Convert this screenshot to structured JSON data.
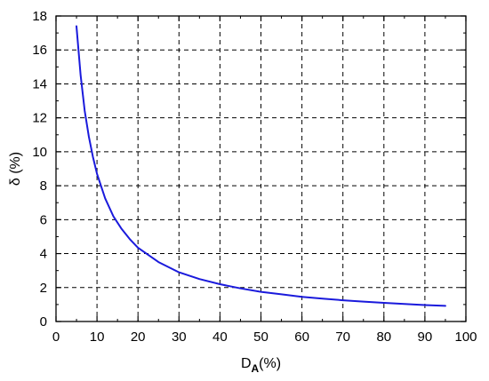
{
  "chart_data": {
    "type": "line",
    "title": "",
    "xlabel": {
      "main": "D",
      "sub": "A",
      "suffix": "(%)"
    },
    "ylabel": "δ (%)",
    "xlim": [
      0,
      100
    ],
    "ylim": [
      0,
      18
    ],
    "xticks": [
      0,
      10,
      20,
      30,
      40,
      50,
      60,
      70,
      80,
      90,
      100
    ],
    "yticks": [
      0,
      2,
      4,
      6,
      8,
      10,
      12,
      14,
      16,
      18
    ],
    "grid": true,
    "legend": "none",
    "series": [
      {
        "color": "#1a1adc",
        "x": [
          5,
          6,
          7,
          8,
          9,
          10,
          12,
          14,
          16,
          18,
          20,
          25,
          30,
          35,
          40,
          45,
          50,
          55,
          60,
          65,
          70,
          75,
          80,
          85,
          90,
          95
        ],
        "y": [
          17.4,
          14.5,
          12.4,
          10.9,
          9.7,
          8.7,
          7.25,
          6.2,
          5.45,
          4.85,
          4.35,
          3.5,
          2.9,
          2.5,
          2.2,
          1.95,
          1.75,
          1.6,
          1.45,
          1.35,
          1.25,
          1.17,
          1.1,
          1.03,
          0.97,
          0.92
        ]
      }
    ]
  }
}
